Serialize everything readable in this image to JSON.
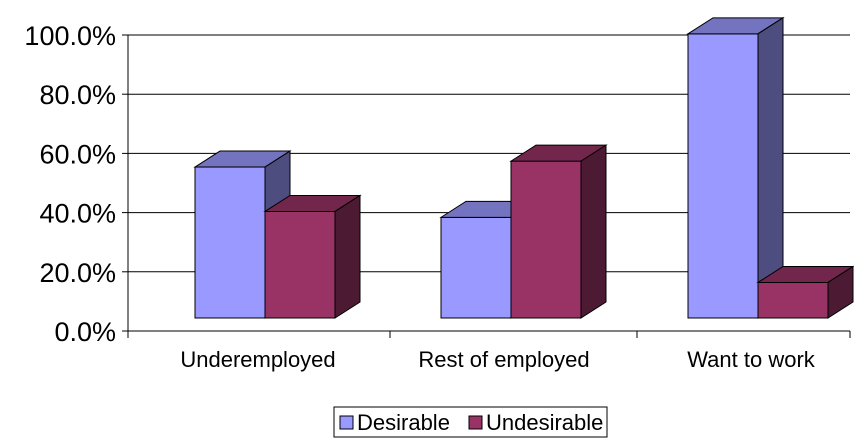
{
  "chart_data": {
    "type": "bar",
    "categories": [
      "Underemployed",
      "Rest of employed",
      "Want to work"
    ],
    "series": [
      {
        "name": "Desirable",
        "values": [
          51.0,
          34.0,
          96.0
        ]
      },
      {
        "name": "Undesirable",
        "values": [
          36.0,
          53.0,
          12.0
        ]
      }
    ],
    "ylim": [
      0,
      100
    ],
    "yticks": [
      "0.0%",
      "20.0%",
      "40.0%",
      "60.0%",
      "80.0%",
      "100.0%"
    ],
    "grid": true,
    "legend_position": "bottom",
    "colors": {
      "Desirable": {
        "front": "#9999ff",
        "side": "#4d4d80",
        "top": "#7373bf"
      },
      "Undesirable": {
        "front": "#993366",
        "side": "#4d1a33",
        "top": "#73264c"
      }
    }
  }
}
